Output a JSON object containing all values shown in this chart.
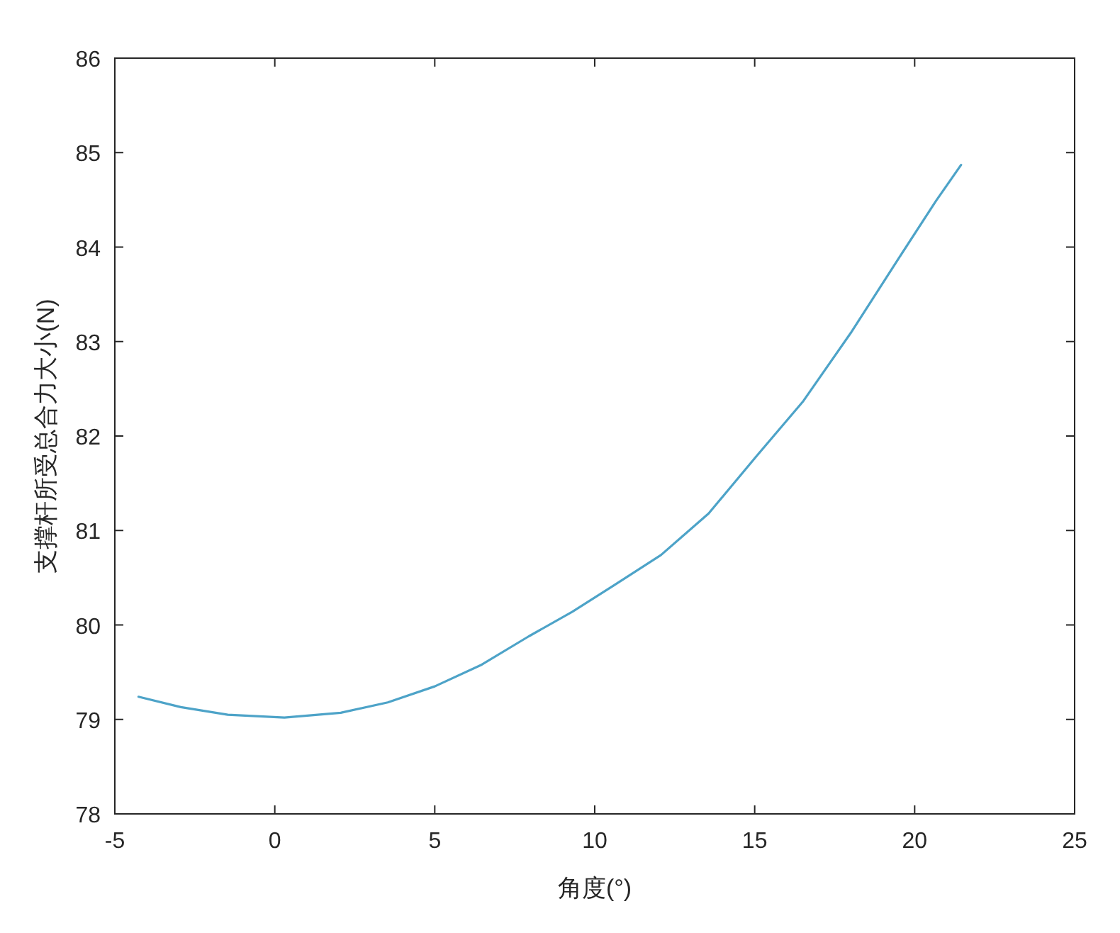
{
  "chart_data": {
    "type": "line",
    "xlabel": "角度(°)",
    "ylabel": "支撑杆所受总合力大小(N)",
    "xlim": [
      -5,
      25
    ],
    "xticks": [
      -5,
      0,
      5,
      10,
      15,
      20,
      25
    ],
    "ylim": [
      78,
      86
    ],
    "yticks": [
      78,
      79,
      80,
      81,
      82,
      83,
      84,
      85,
      86
    ],
    "grid": false,
    "marker": "none",
    "line_style": "solid",
    "series": [
      {
        "color": "#4da3c8",
        "x": [
          -4.26,
          -2.94,
          -1.47,
          0.3,
          2.06,
          3.53,
          5.0,
          6.47,
          7.94,
          9.3,
          10.6,
          12.07,
          13.56,
          15.04,
          16.52,
          18.0,
          19.48,
          20.67,
          21.45
        ],
        "values": [
          79.24,
          79.13,
          79.05,
          79.02,
          79.07,
          79.18,
          79.35,
          79.58,
          79.88,
          80.14,
          80.42,
          80.74,
          81.18,
          81.78,
          82.37,
          83.09,
          83.87,
          84.49,
          84.87
        ]
      }
    ]
  }
}
